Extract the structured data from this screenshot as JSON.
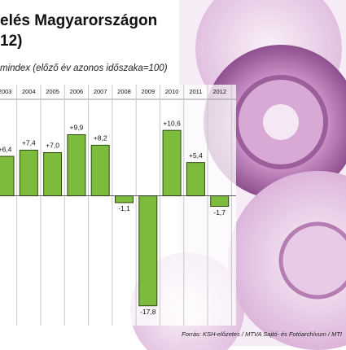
{
  "chart_data": {
    "type": "bar",
    "title": "elés Magyarországon",
    "title_line2": "12)",
    "subtitle": "mindex (előző év azonos időszaka=100)",
    "source": "Forrás: KSH-előzetes / MTVA Sajtó- és Fotóarchívum / MTI",
    "categories": [
      "2003",
      "2004",
      "2005",
      "2006",
      "2007",
      "2008",
      "2009",
      "2010",
      "2011",
      "2012"
    ],
    "values": [
      6.4,
      7.4,
      7.0,
      9.9,
      8.2,
      -1.1,
      -17.8,
      10.6,
      5.4,
      -1.7
    ],
    "value_labels": [
      "+6,4",
      "+7,4",
      "+7,0",
      "+9,9",
      "+8,2",
      "-1,1",
      "-17,8",
      "+10,6",
      "+5,4",
      "-1,7"
    ],
    "color": "#7cbb3b",
    "ylim": [
      -21,
      18
    ]
  }
}
